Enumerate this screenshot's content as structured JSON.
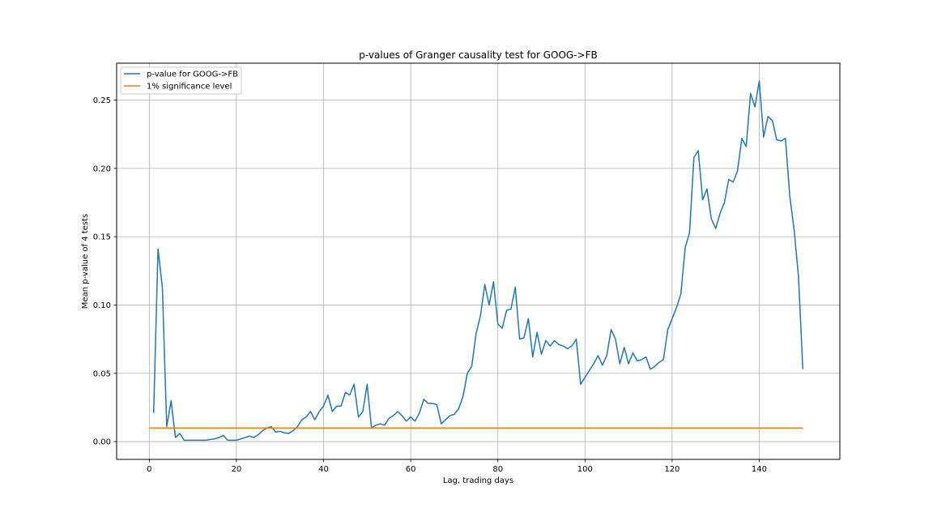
{
  "chart_data": {
    "type": "line",
    "title": "p-values of Granger causality test for GOOG->FB",
    "xlabel": "Lag, trading days",
    "ylabel": "Mean p-value of 4 tests",
    "xlim": [
      -7.5,
      158.5
    ],
    "ylim": [
      -0.013,
      0.277
    ],
    "xticks": [
      0,
      20,
      40,
      60,
      80,
      100,
      120,
      140
    ],
    "yticks": [
      0.0,
      0.05,
      0.1,
      0.15,
      0.2,
      0.25
    ],
    "ytick_labels": [
      "0.00",
      "0.05",
      "0.10",
      "0.15",
      "0.20",
      "0.25"
    ],
    "grid": true,
    "legend_position": "top-left",
    "colors": {
      "series_0": "#1f77b4",
      "series_1": "#ff7f0e"
    },
    "series": [
      {
        "name": "p-value for GOOG->FB",
        "x": [
          1,
          2,
          3,
          4,
          5,
          6,
          7,
          8,
          9,
          10,
          11,
          12,
          13,
          14,
          15,
          16,
          17,
          18,
          19,
          20,
          21,
          22,
          23,
          24,
          25,
          26,
          27,
          28,
          29,
          30,
          31,
          32,
          33,
          34,
          35,
          36,
          37,
          38,
          39,
          40,
          41,
          42,
          43,
          44,
          45,
          46,
          47,
          48,
          49,
          50,
          51,
          52,
          53,
          54,
          55,
          56,
          57,
          58,
          59,
          60,
          61,
          62,
          63,
          64,
          65,
          66,
          67,
          68,
          69,
          70,
          71,
          72,
          73,
          74,
          75,
          76,
          77,
          78,
          79,
          80,
          81,
          82,
          83,
          84,
          85,
          86,
          87,
          88,
          89,
          90,
          91,
          92,
          93,
          94,
          95,
          96,
          97,
          98,
          99,
          100,
          101,
          102,
          103,
          104,
          105,
          106,
          107,
          108,
          109,
          110,
          111,
          112,
          113,
          114,
          115,
          116,
          117,
          118,
          119,
          120,
          121,
          122,
          123,
          124,
          125,
          126,
          127,
          128,
          129,
          130,
          131,
          132,
          133,
          134,
          135,
          136,
          137,
          138,
          139,
          140,
          141,
          142,
          143,
          144,
          145,
          146,
          147,
          148,
          149,
          150
        ],
        "y": [
          0.021,
          0.141,
          0.113,
          0.011,
          0.03,
          0.003,
          0.006,
          0.001,
          0.001,
          0.001,
          0.001,
          0.001,
          0.001,
          0.0015,
          0.002,
          0.003,
          0.0045,
          0.001,
          0.001,
          0.001,
          0.002,
          0.003,
          0.004,
          0.003,
          0.005,
          0.008,
          0.01,
          0.011,
          0.007,
          0.0075,
          0.0065,
          0.006,
          0.008,
          0.011,
          0.016,
          0.018,
          0.022,
          0.016,
          0.022,
          0.026,
          0.034,
          0.022,
          0.026,
          0.026,
          0.036,
          0.034,
          0.042,
          0.018,
          0.022,
          0.042,
          0.01,
          0.012,
          0.013,
          0.012,
          0.017,
          0.019,
          0.022,
          0.019,
          0.015,
          0.018,
          0.015,
          0.021,
          0.031,
          0.028,
          0.028,
          0.027,
          0.013,
          0.016,
          0.019,
          0.02,
          0.024,
          0.033,
          0.05,
          0.055,
          0.079,
          0.092,
          0.115,
          0.1,
          0.117,
          0.086,
          0.083,
          0.096,
          0.097,
          0.113,
          0.075,
          0.076,
          0.09,
          0.062,
          0.08,
          0.064,
          0.074,
          0.07,
          0.074,
          0.071,
          0.07,
          0.068,
          0.07,
          0.075,
          0.042,
          0.047,
          0.052,
          0.057,
          0.063,
          0.056,
          0.063,
          0.082,
          0.075,
          0.057,
          0.069,
          0.057,
          0.065,
          0.059,
          0.06,
          0.062,
          0.053,
          0.055,
          0.058,
          0.06,
          0.082,
          0.09,
          0.098,
          0.108,
          0.142,
          0.153,
          0.208,
          0.213,
          0.177,
          0.185,
          0.163,
          0.156,
          0.167,
          0.175,
          0.192,
          0.19,
          0.198,
          0.222,
          0.216,
          0.255,
          0.245,
          0.264,
          0.223,
          0.238,
          0.235,
          0.221,
          0.22,
          0.222,
          0.18,
          0.155,
          0.121,
          0.053
        ]
      },
      {
        "name": "1% significance level",
        "x": [
          0,
          150
        ],
        "y": [
          0.01,
          0.01
        ]
      }
    ]
  }
}
